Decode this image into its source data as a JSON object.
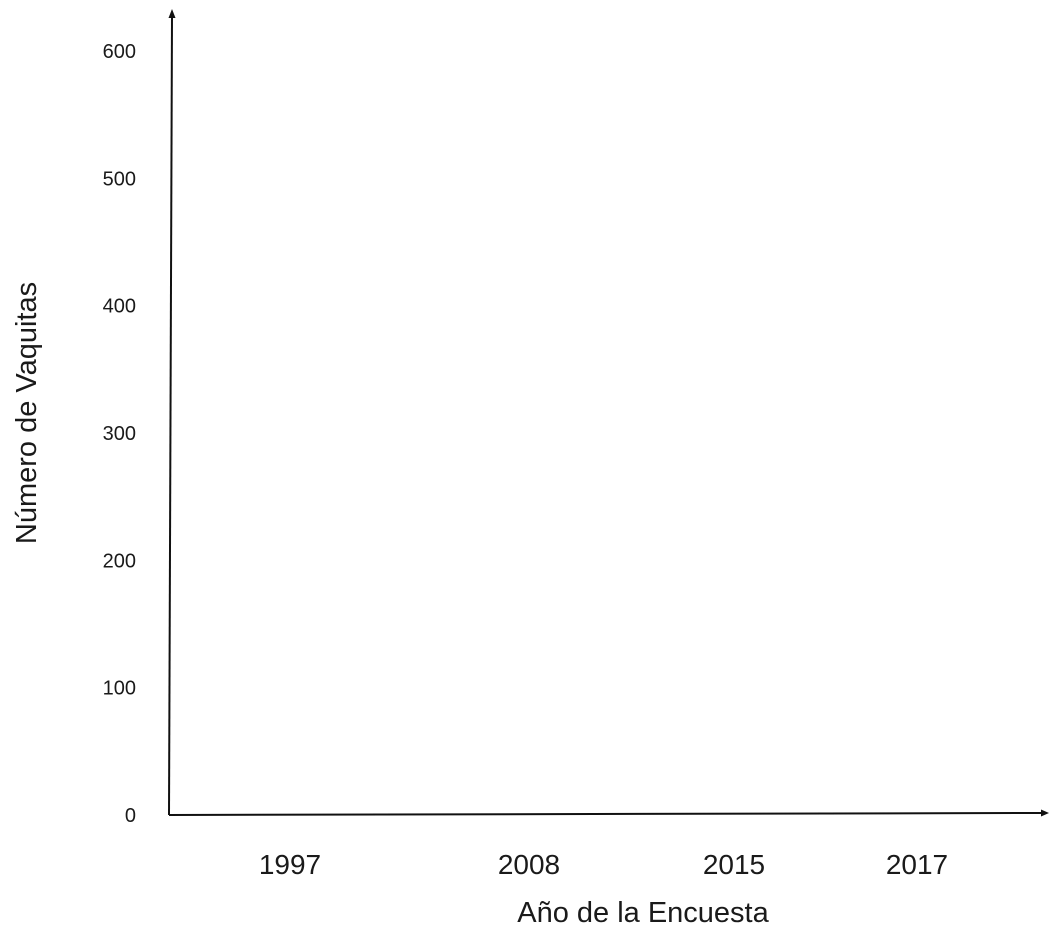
{
  "chart_data": {
    "type": "line",
    "title": "",
    "xlabel": "Año de la Encuesta",
    "ylabel": "Número de Vaquitas",
    "categories": [
      "1997",
      "2008",
      "2015",
      "2017"
    ],
    "yticks": [
      "0",
      "100",
      "200",
      "300",
      "400",
      "500",
      "600"
    ],
    "ylim": [
      0,
      600
    ],
    "grid": false,
    "series": []
  }
}
